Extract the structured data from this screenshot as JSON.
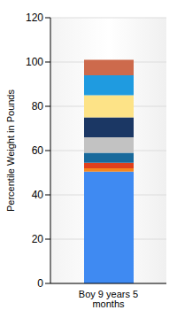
{
  "chart_data": {
    "type": "bar",
    "stacked": true,
    "ylabel": "Percentile Weight in Pounds",
    "categories": [
      "Boy 9 years 5 months"
    ],
    "series": [
      {
        "color": "#3f8af2",
        "values": [
          50.5
        ]
      },
      {
        "color": "#f5861f",
        "values": [
          1.5
        ]
      },
      {
        "color": "#e0401c",
        "values": [
          2.5
        ]
      },
      {
        "color": "#196a9c",
        "values": [
          4.5
        ]
      },
      {
        "color": "#c2c2c2",
        "values": [
          7
        ]
      },
      {
        "color": "#1b3764",
        "values": [
          9
        ]
      },
      {
        "color": "#fde387",
        "values": [
          10
        ]
      },
      {
        "color": "#1f9be0",
        "values": [
          9
        ]
      },
      {
        "color": "#cd6a4c",
        "values": [
          7
        ]
      }
    ],
    "ylim": [
      0,
      120
    ],
    "yticks": [
      0,
      20,
      40,
      60,
      80,
      100,
      120
    ],
    "grid": true
  }
}
